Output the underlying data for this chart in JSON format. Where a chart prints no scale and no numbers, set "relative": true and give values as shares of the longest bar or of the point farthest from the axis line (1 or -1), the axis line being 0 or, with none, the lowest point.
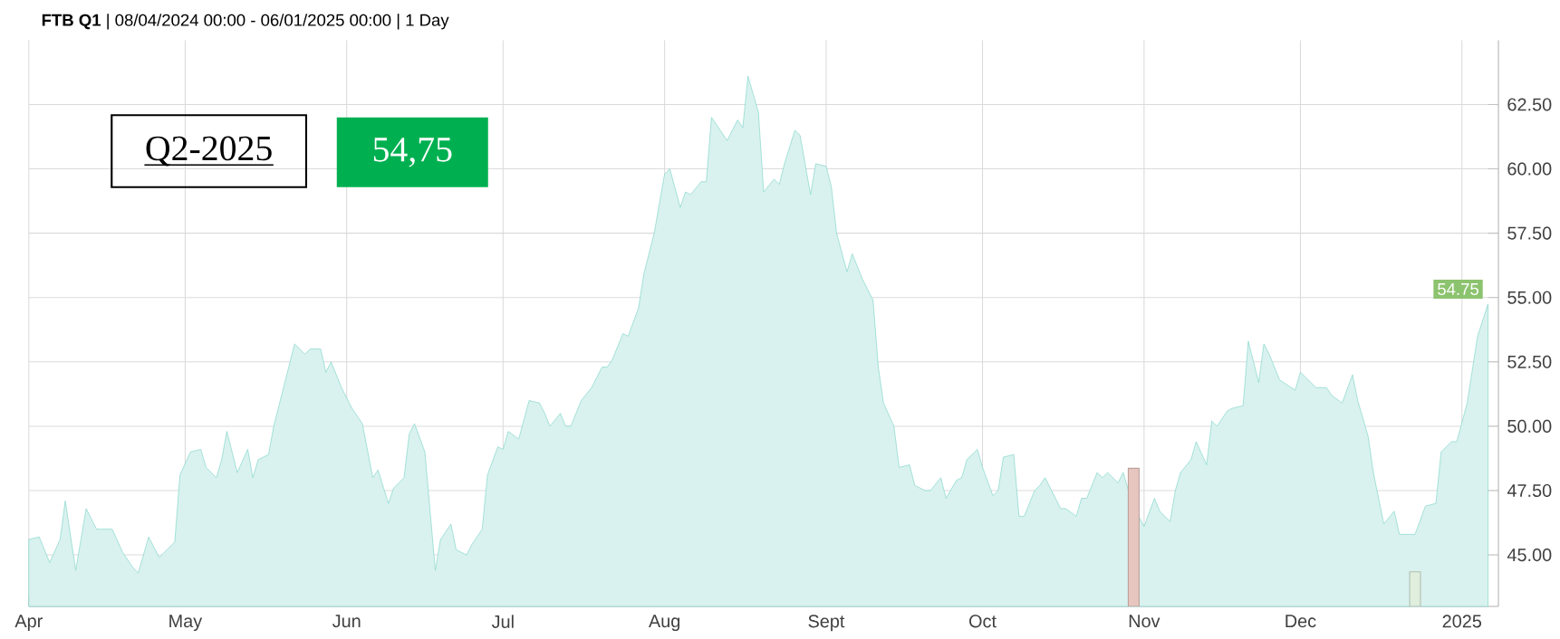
{
  "chart_data": [
    {
      "type": "area",
      "title": "**FTB Q1** | 08/04/2024 00:00 - 06/01/2025 00:00 | 1 Day",
      "color": "#80d4c9",
      "grid": true,
      "x": [
        "2024-04-01",
        "2024-04-03",
        "2024-04-05",
        "2024-04-07",
        "2024-04-08",
        "2024-04-10",
        "2024-04-12",
        "2024-04-14",
        "2024-04-17",
        "2024-04-19",
        "2024-04-21",
        "2024-04-22",
        "2024-04-24",
        "2024-04-26",
        "2024-04-29",
        "2024-04-30",
        "2024-05-02",
        "2024-05-04",
        "2024-05-05",
        "2024-05-07",
        "2024-05-08",
        "2024-05-09",
        "2024-05-11",
        "2024-05-13",
        "2024-05-14",
        "2024-05-15",
        "2024-05-17",
        "2024-05-18",
        "2024-05-20",
        "2024-05-22",
        "2024-05-24",
        "2024-05-25",
        "2024-05-27",
        "2024-05-28",
        "2024-05-29",
        "2024-05-31",
        "2024-06-02",
        "2024-06-04",
        "2024-06-06",
        "2024-06-07",
        "2024-06-09",
        "2024-06-10",
        "2024-06-12",
        "2024-06-13",
        "2024-06-14",
        "2024-06-16",
        "2024-06-18",
        "2024-06-19",
        "2024-06-21",
        "2024-06-22",
        "2024-06-24",
        "2024-06-25",
        "2024-06-27",
        "2024-06-28",
        "2024-06-30",
        "2024-07-01",
        "2024-07-02",
        "2024-07-04",
        "2024-07-06",
        "2024-07-08",
        "2024-07-09",
        "2024-07-10",
        "2024-07-12",
        "2024-07-13",
        "2024-07-14",
        "2024-07-16",
        "2024-07-18",
        "2024-07-20",
        "2024-07-21",
        "2024-07-22",
        "2024-07-24",
        "2024-07-25",
        "2024-07-27",
        "2024-07-28",
        "2024-07-30",
        "2024-08-01",
        "2024-08-02",
        "2024-08-04",
        "2024-08-05",
        "2024-08-06",
        "2024-08-08",
        "2024-08-09",
        "2024-08-10",
        "2024-08-12",
        "2024-08-13",
        "2024-08-15",
        "2024-08-16",
        "2024-08-17",
        "2024-08-19",
        "2024-08-20",
        "2024-08-22",
        "2024-08-23",
        "2024-08-24",
        "2024-08-26",
        "2024-08-27",
        "2024-08-29",
        "2024-08-30",
        "2024-09-01",
        "2024-09-02",
        "2024-09-03",
        "2024-09-05",
        "2024-09-06",
        "2024-09-08",
        "2024-09-10",
        "2024-09-11",
        "2024-09-12",
        "2024-09-14",
        "2024-09-15",
        "2024-09-17",
        "2024-09-18",
        "2024-09-20",
        "2024-09-21",
        "2024-09-23",
        "2024-09-24",
        "2024-09-26",
        "2024-09-27",
        "2024-09-28",
        "2024-09-30",
        "2024-10-01",
        "2024-10-03",
        "2024-10-04",
        "2024-10-05",
        "2024-10-07",
        "2024-10-08",
        "2024-10-09",
        "2024-10-11",
        "2024-10-12",
        "2024-10-13",
        "2024-10-15",
        "2024-10-16",
        "2024-10-17",
        "2024-10-19",
        "2024-10-20",
        "2024-10-21",
        "2024-10-23",
        "2024-10-24",
        "2024-10-25",
        "2024-10-27",
        "2024-10-28",
        "2024-10-29",
        "2024-10-31",
        "2024-11-01",
        "2024-11-03",
        "2024-11-04",
        "2024-11-06",
        "2024-11-07",
        "2024-11-08",
        "2024-11-10",
        "2024-11-11",
        "2024-11-13",
        "2024-11-14",
        "2024-11-15",
        "2024-11-17",
        "2024-11-18",
        "2024-11-20",
        "2024-11-21",
        "2024-11-23",
        "2024-11-24",
        "2024-11-25",
        "2024-11-27",
        "2024-11-30",
        "2024-12-01",
        "2024-12-03",
        "2024-12-04",
        "2024-12-06",
        "2024-12-07",
        "2024-12-09",
        "2024-12-11",
        "2024-12-12",
        "2024-12-14",
        "2024-12-15",
        "2024-12-17",
        "2024-12-19",
        "2024-12-20",
        "2024-12-22",
        "2024-12-23",
        "2024-12-25",
        "2024-12-27",
        "2024-12-28",
        "2024-12-30",
        "2024-12-31",
        "2025-01-02",
        "2025-01-04",
        "2025-01-06"
      ],
      "values": [
        45.6,
        45.7,
        44.7,
        45.6,
        47.1,
        44.4,
        46.8,
        46.0,
        46.0,
        45.1,
        44.5,
        44.3,
        45.7,
        44.9,
        45.5,
        48.1,
        49.0,
        49.1,
        48.4,
        48.0,
        48.7,
        49.8,
        48.2,
        49.1,
        48.0,
        48.7,
        48.9,
        50.0,
        51.6,
        53.2,
        52.8,
        53.0,
        53.0,
        52.1,
        52.5,
        51.5,
        50.7,
        50.1,
        48.0,
        48.3,
        47.0,
        47.6,
        48.0,
        49.7,
        50.1,
        49.0,
        44.4,
        45.6,
        46.2,
        45.2,
        45.0,
        45.4,
        46.0,
        48.1,
        49.2,
        49.1,
        49.8,
        49.5,
        51.0,
        50.9,
        50.5,
        50.0,
        50.5,
        50.0,
        50.0,
        51.0,
        51.5,
        52.3,
        52.3,
        52.6,
        53.6,
        53.5,
        54.6,
        55.9,
        57.5,
        59.8,
        60.0,
        58.5,
        59.1,
        59.0,
        59.5,
        59.5,
        62.0,
        61.4,
        61.1,
        61.9,
        61.6,
        63.6,
        62.2,
        59.1,
        59.6,
        59.4,
        60.2,
        61.5,
        61.3,
        59.0,
        60.2,
        60.1,
        59.3,
        57.5,
        56.0,
        56.7,
        55.7,
        54.9,
        52.3,
        50.9,
        50.0,
        48.4,
        48.5,
        47.7,
        47.5,
        47.5,
        48.0,
        47.2,
        47.9,
        48.0,
        48.7,
        49.1,
        48.4,
        47.3,
        47.5,
        48.8,
        48.9,
        46.5,
        46.5,
        47.5,
        47.7,
        48.0,
        47.2,
        46.8,
        46.8,
        46.5,
        47.2,
        47.2,
        48.2,
        48.0,
        48.2,
        47.8,
        48.2,
        47.5,
        46.5,
        46.1,
        47.2,
        46.7,
        46.3,
        47.5,
        48.2,
        48.7,
        49.4,
        48.5,
        50.2,
        50.0,
        50.6,
        50.7,
        50.8,
        53.3,
        51.7,
        53.2,
        52.8,
        51.8,
        51.4,
        52.1,
        51.7,
        51.5,
        51.5,
        51.2,
        50.9,
        52.0,
        51.0,
        49.6,
        48.2,
        46.2,
        46.7,
        45.8,
        45.8,
        45.8,
        46.9,
        47.0,
        49.0,
        49.4,
        49.4,
        50.9,
        53.5,
        54.75
      ],
      "xlim": [
        "2024-04-01",
        "2025-01-08"
      ],
      "xticks": [
        {
          "value": "2024-04-01",
          "label": "Apr"
        },
        {
          "value": "2024-05-01",
          "label": "May"
        },
        {
          "value": "2024-06-01",
          "label": "Jun"
        },
        {
          "value": "2024-07-01",
          "label": "Jul"
        },
        {
          "value": "2024-08-01",
          "label": "Aug"
        },
        {
          "value": "2024-09-01",
          "label": "Sept"
        },
        {
          "value": "2024-10-01",
          "label": "Oct"
        },
        {
          "value": "2024-11-01",
          "label": "Nov"
        },
        {
          "value": "2024-12-01",
          "label": "Dec"
        },
        {
          "value": "2025-01-01",
          "label": "2025"
        }
      ],
      "ylim": [
        43,
        65
      ],
      "yticks": [
        {
          "value": 45,
          "label": "45.00"
        },
        {
          "value": 47.5,
          "label": "47.50"
        },
        {
          "value": 50,
          "label": "50.00"
        },
        {
          "value": 52.5,
          "label": "52.50"
        },
        {
          "value": 55,
          "label": "55.00"
        },
        {
          "value": 57.5,
          "label": "57.50"
        },
        {
          "value": 60,
          "label": "60.00"
        },
        {
          "value": 62.5,
          "label": "62.50"
        }
      ],
      "annotations": [
        "Q2-2025",
        "54,75",
        {
          "text": "54.75",
          "x": "2025-01-06",
          "y": 54.75
        }
      ]
    },
    {
      "type": "bar",
      "relative": true,
      "x": [
        "2024-10-30",
        "2024-12-23"
      ],
      "values": [
        1,
        0.25
      ],
      "colors": [
        "#e8c6c0",
        "#dfeedd"
      ],
      "xlim": [
        "2024-04-01",
        "2025-01-08"
      ]
    }
  ]
}
